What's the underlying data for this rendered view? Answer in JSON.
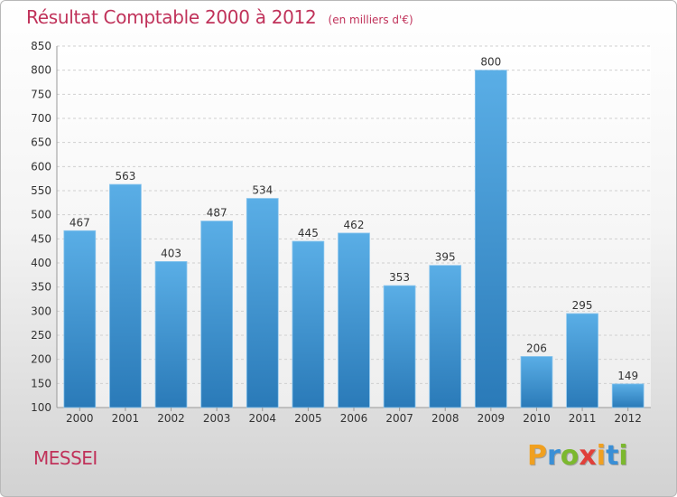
{
  "chart_data": {
    "type": "bar",
    "title": "Résultat Comptable 2000 à 2012",
    "subtitle": "(en milliers d'€)",
    "categories": [
      "2000",
      "2001",
      "2002",
      "2003",
      "2004",
      "2005",
      "2006",
      "2007",
      "2008",
      "2009",
      "2010",
      "2011",
      "2012"
    ],
    "values": [
      467,
      563,
      403,
      487,
      534,
      445,
      462,
      353,
      395,
      800,
      206,
      295,
      149
    ],
    "ylim": [
      100,
      850
    ],
    "yticks": [
      100,
      150,
      200,
      250,
      300,
      350,
      400,
      450,
      500,
      550,
      600,
      650,
      700,
      750,
      800,
      850
    ],
    "xlabel": "",
    "ylabel": "",
    "grid": true,
    "bar_color_top": "#5aaee6",
    "bar_color_bottom": "#2a7ab8"
  },
  "footer": {
    "commune": "MESSEI",
    "logo_letters": [
      "P",
      "r",
      "o",
      "x",
      "i",
      "t",
      "i"
    ],
    "logo_colors": [
      "#f0a020",
      "#3a8fd6",
      "#7cb82f",
      "#e0403a",
      "#f0a020",
      "#3a8fd6",
      "#7cb82f"
    ]
  }
}
